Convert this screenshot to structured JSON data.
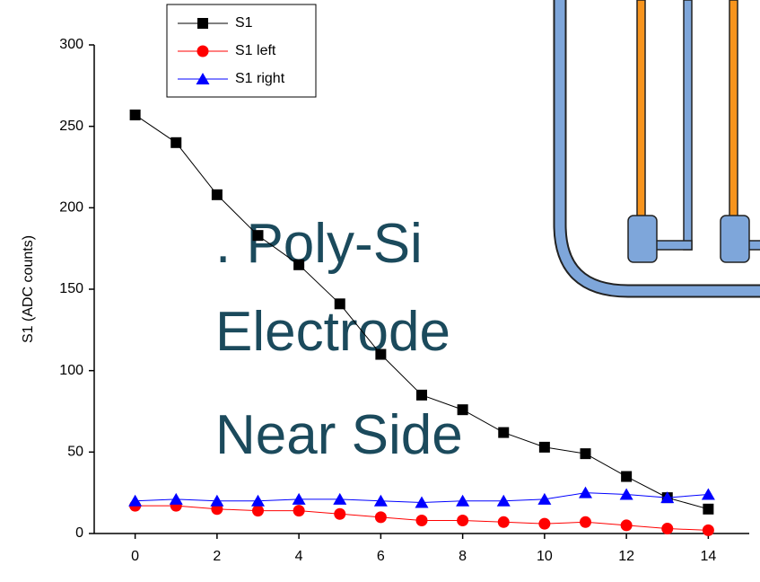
{
  "chart_data": {
    "type": "line",
    "y_label": "S1 (ADC counts)",
    "x": [
      0,
      1,
      2,
      3,
      4,
      5,
      6,
      7,
      8,
      9,
      10,
      11,
      12,
      13,
      14
    ],
    "series": [
      {
        "name": "S1",
        "color": "#000000",
        "marker": "square",
        "values": [
          257,
          240,
          208,
          183,
          165,
          141,
          110,
          85,
          76,
          62,
          53,
          49,
          35,
          22,
          15
        ]
      },
      {
        "name": "S1 left",
        "color": "#ff0000",
        "marker": "circle",
        "values": [
          17,
          17,
          15,
          14,
          14,
          12,
          10,
          8,
          8,
          7,
          6,
          7,
          5,
          3,
          2
        ]
      },
      {
        "name": "S1 right",
        "color": "#0000ff",
        "marker": "triangle",
        "values": [
          20,
          21,
          20,
          20,
          21,
          21,
          20,
          19,
          20,
          20,
          21,
          25,
          24,
          22,
          24
        ]
      }
    ],
    "xlim": [
      -1,
      15
    ],
    "xticks": [
      0,
      2,
      4,
      6,
      8,
      10,
      12,
      14
    ],
    "ylim": [
      0,
      300
    ],
    "yticks": [
      0,
      50,
      100,
      150,
      200,
      250,
      300
    ],
    "legend": "upper-left",
    "annotations": [
      ". Poly-Si",
      "Electrode",
      "Near Side"
    ]
  }
}
